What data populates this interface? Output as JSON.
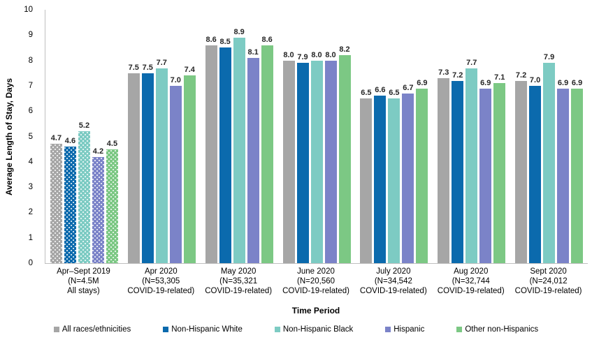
{
  "chart_data": {
    "type": "bar",
    "title": "",
    "xlabel": "Time Period",
    "ylabel": "Average Length of Stay, Days",
    "ylim": [
      0,
      10
    ],
    "ytick_step": 1,
    "grid": false,
    "legend_position": "bottom",
    "patterned_category_index": 0,
    "categories": [
      [
        "Apr–Sept 2019",
        "(N=4.5M",
        "All stays)"
      ],
      [
        "Apr 2020",
        "(N=53,305",
        "COVID-19-related)"
      ],
      [
        "May 2020",
        "(N=35,321",
        "COVID-19-related)"
      ],
      [
        "June 2020",
        "(N=20,560",
        "COVID-19-related)"
      ],
      [
        "July 2020",
        "(N=34,542",
        "COVID-19-related)"
      ],
      [
        "Aug 2020",
        "(N=32,744",
        "COVID-19-related)"
      ],
      [
        "Sept 2020",
        "(N=24,012",
        "COVID-19-related)"
      ]
    ],
    "series": [
      {
        "name": "All races/ethnicities",
        "color": "#a6a6a6",
        "values": [
          4.7,
          7.5,
          8.6,
          8.0,
          6.5,
          7.3,
          7.2
        ]
      },
      {
        "name": "Non-Hispanic White",
        "color": "#0b6aad",
        "values": [
          4.6,
          7.5,
          8.5,
          7.9,
          6.6,
          7.2,
          7.0
        ]
      },
      {
        "name": "Non-Hispanic Black",
        "color": "#7dcbc3",
        "values": [
          5.2,
          7.7,
          8.9,
          8.0,
          6.5,
          7.7,
          7.9
        ]
      },
      {
        "name": "Hispanic",
        "color": "#7b83c8",
        "values": [
          4.2,
          7.0,
          8.1,
          8.0,
          6.7,
          6.9,
          6.9
        ]
      },
      {
        "name": "Other non-Hispanics",
        "color": "#7cc884",
        "values": [
          4.5,
          7.4,
          8.6,
          8.2,
          6.9,
          7.1,
          6.9
        ]
      }
    ]
  }
}
